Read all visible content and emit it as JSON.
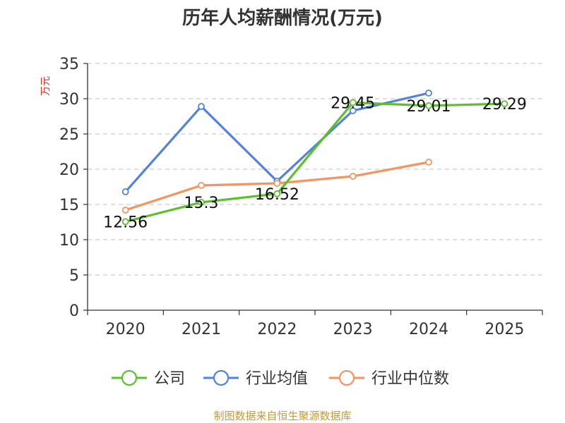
{
  "chart_data": {
    "type": "line",
    "title": "历年人均薪酬情况(万元)",
    "ylabel": "万元",
    "xlabel": "",
    "categories": [
      "2020",
      "2021",
      "2022",
      "2023",
      "2024",
      "2025"
    ],
    "ylim": [
      0,
      35
    ],
    "yticks": [
      0,
      5,
      10,
      15,
      20,
      25,
      30,
      35
    ],
    "grid": true,
    "legend_position": "bottom",
    "series": [
      {
        "name": "公司",
        "color": "#5cc02c",
        "values": [
          12.56,
          15.3,
          16.52,
          29.45,
          29.01,
          29.29
        ],
        "labels": [
          "12.56",
          "15.3",
          "16.52",
          "29.45",
          "29.01",
          "29.29"
        ]
      },
      {
        "name": "行业均值",
        "color": "#5182e0",
        "values": [
          16.8,
          28.9,
          18.3,
          28.3,
          30.8,
          null
        ]
      },
      {
        "name": "行业中位数",
        "color": "#f7935f",
        "values": [
          14.2,
          17.7,
          18.0,
          19.0,
          21.0,
          null
        ]
      }
    ]
  },
  "source_text": "制图数据来自恒生聚源数据库",
  "colors": {
    "title": "#333333",
    "ylabel": "#e0312b",
    "source": "#c09a3c",
    "grid": "#cccccc",
    "axis": "#333333"
  }
}
